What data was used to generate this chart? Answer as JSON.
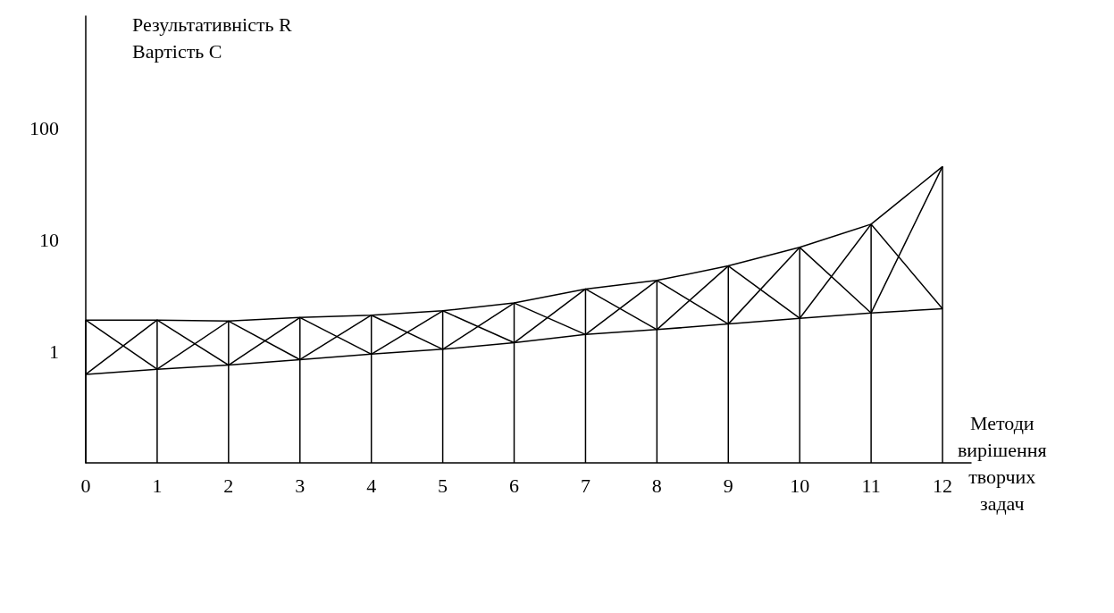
{
  "chart_data": {
    "type": "line",
    "ylabel": "Результативність R\nВартість C",
    "xlabel": "Методи\nвирішення\nтворчих\nзадач",
    "x": [
      0,
      1,
      2,
      3,
      4,
      5,
      6,
      7,
      8,
      9,
      10,
      11,
      12
    ],
    "series": [
      {
        "color": "#000000",
        "values": [
          1.9,
          1.9,
          1.86,
          2.0,
          2.1,
          2.3,
          2.7,
          3.6,
          4.3,
          5.8,
          8.5,
          13.7,
          45
        ]
      },
      {
        "color": "#000000",
        "values": [
          0.62,
          0.69,
          0.75,
          0.84,
          0.94,
          1.04,
          1.19,
          1.41,
          1.56,
          1.75,
          1.97,
          2.2,
          2.4
        ]
      },
      {
        "color": "#000000",
        "values": [
          1.9,
          0.69,
          1.86,
          0.84,
          2.1,
          1.04,
          2.7,
          1.41,
          4.3,
          1.75,
          8.5,
          2.2,
          45
        ]
      },
      {
        "color": "#000000",
        "values": [
          0.62,
          1.9,
          0.75,
          2.0,
          0.94,
          2.3,
          1.19,
          3.6,
          1.56,
          5.8,
          1.97,
          13.7,
          2.4
        ]
      },
      {
        "type": "bar",
        "color": "#000000",
        "values": [
          1.9,
          1.9,
          1.86,
          2.0,
          2.1,
          2.3,
          2.7,
          3.6,
          4.3,
          5.8,
          8.5,
          13.7,
          45
        ]
      }
    ],
    "log": "y",
    "xlim": [
      0,
      12.4
    ],
    "ylim": [
      0.1,
      1000
    ],
    "xticks": [
      0,
      1,
      2,
      3,
      4,
      5,
      6,
      7,
      8,
      9,
      10,
      11,
      12
    ],
    "yticks": [
      1,
      10,
      100
    ],
    "marker": "none",
    "line_style": "solid"
  }
}
